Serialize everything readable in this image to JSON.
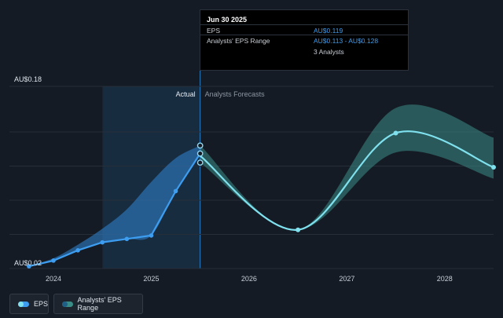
{
  "chart_data": {
    "type": "line",
    "y_axis": {
      "labels": [
        "AU$0.18",
        "AU$0.02"
      ],
      "ylim": [
        0.02,
        0.18
      ],
      "grid": true
    },
    "x_axis": {
      "tick_labels": [
        "2024",
        "2025",
        "2026",
        "2027",
        "2028"
      ],
      "tick_values": [
        2024,
        2025,
        2026,
        2027,
        2028
      ],
      "xlim": [
        2023.55,
        2028.5
      ]
    },
    "section_labels": {
      "actual": "Actual",
      "forecast": "Analysts Forecasts"
    },
    "divider_x": 2025.5,
    "highlight_start_x": 2024.5,
    "series": [
      {
        "name": "EPS",
        "kind": "actual",
        "color": "#3d9df0",
        "points": [
          [
            2023.75,
            0.022
          ],
          [
            2024.0,
            0.027
          ],
          [
            2024.25,
            0.036
          ],
          [
            2024.5,
            0.043
          ],
          [
            2024.75,
            0.046
          ],
          [
            2025.0,
            0.049
          ],
          [
            2025.25,
            0.088
          ],
          [
            2025.5,
            0.121
          ]
        ]
      },
      {
        "name": "Analysts' EPS Range",
        "kind": "range",
        "color": "#3a8c86",
        "points": [
          [
            2025.5,
            0.113,
            0.128
          ],
          [
            2026.5,
            0.054,
            0.054
          ],
          [
            2027.5,
            0.122,
            0.161
          ],
          [
            2028.5,
            0.099,
            0.135
          ]
        ]
      },
      {
        "name": "EPS forecast",
        "kind": "forecast",
        "color": "#7fe0ee",
        "points": [
          [
            2025.5,
            0.119
          ],
          [
            2026.5,
            0.054
          ],
          [
            2027.5,
            0.139
          ],
          [
            2028.5,
            0.109
          ]
        ]
      }
    ],
    "actual_band": [
      [
        2023.75,
        0.022,
        0.022
      ],
      [
        2024.0,
        0.027,
        0.029
      ],
      [
        2024.25,
        0.036,
        0.041
      ],
      [
        2024.5,
        0.043,
        0.055
      ],
      [
        2024.75,
        0.046,
        0.072
      ],
      [
        2025.0,
        0.049,
        0.096
      ],
      [
        2025.25,
        0.088,
        0.117
      ],
      [
        2025.5,
        0.121,
        0.128
      ]
    ],
    "markers_at_divider": [
      0.128,
      0.121,
      0.113
    ],
    "legend": [
      {
        "label": "EPS",
        "color": "#3d9df0"
      },
      {
        "label": "Analysts' EPS Range",
        "color": "#3a8c86"
      }
    ]
  },
  "tooltip": {
    "date": "Jun 30 2025",
    "rows": [
      {
        "label": "EPS",
        "value": "AU$0.119"
      },
      {
        "label": "Analysts' EPS Range",
        "value": "AU$0.113 - AU$0.128"
      }
    ],
    "analysts": "3 Analysts"
  }
}
